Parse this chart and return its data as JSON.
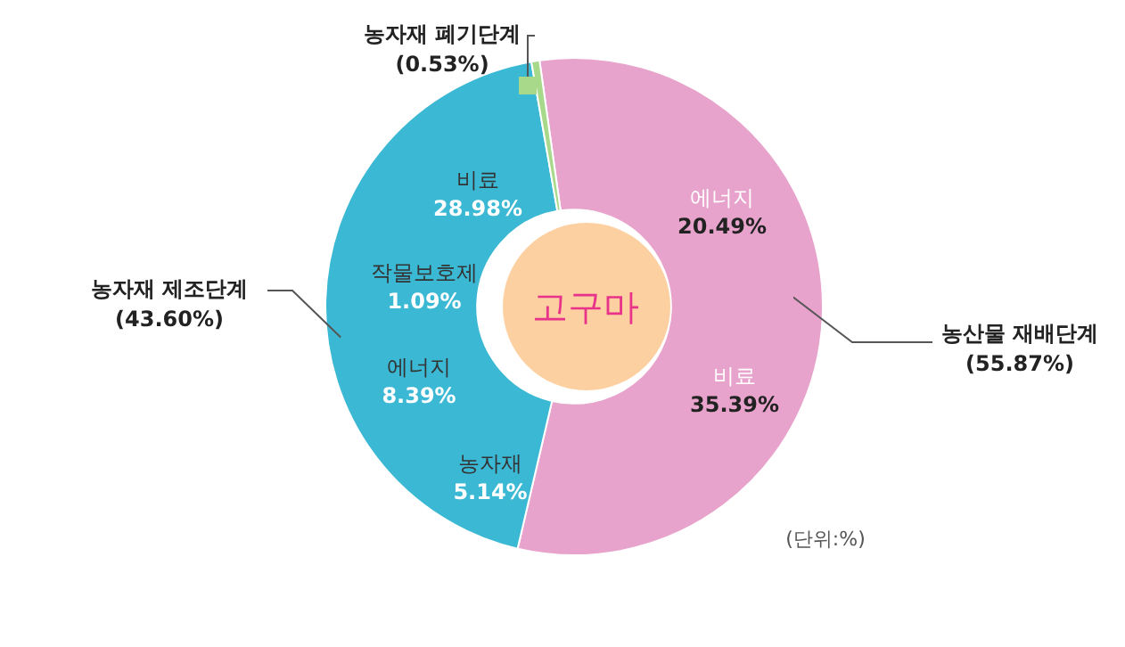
{
  "chart_data": {
    "type": "donut",
    "title": "고구마",
    "categories": [
      "농산물 재배단계",
      "농자재 제조단계",
      "농자재 폐기단계"
    ],
    "values": [
      55.87,
      43.6,
      0.53
    ],
    "value_labels": [
      "(55.87%)",
      "(43.60%)",
      "(0.53%)"
    ],
    "colors": [
      "#e8a3cc",
      "#3bb8d4",
      "#a8d98a"
    ],
    "annotations": [
      "에너지\n20.49%",
      "비료\n35.39%",
      "비료\n28.98%",
      "작물보호제\n1.09%",
      "에너지\n8.39%",
      "농자재\n5.14%",
      "(단위:%)"
    ],
    "legend": false
  }
}
